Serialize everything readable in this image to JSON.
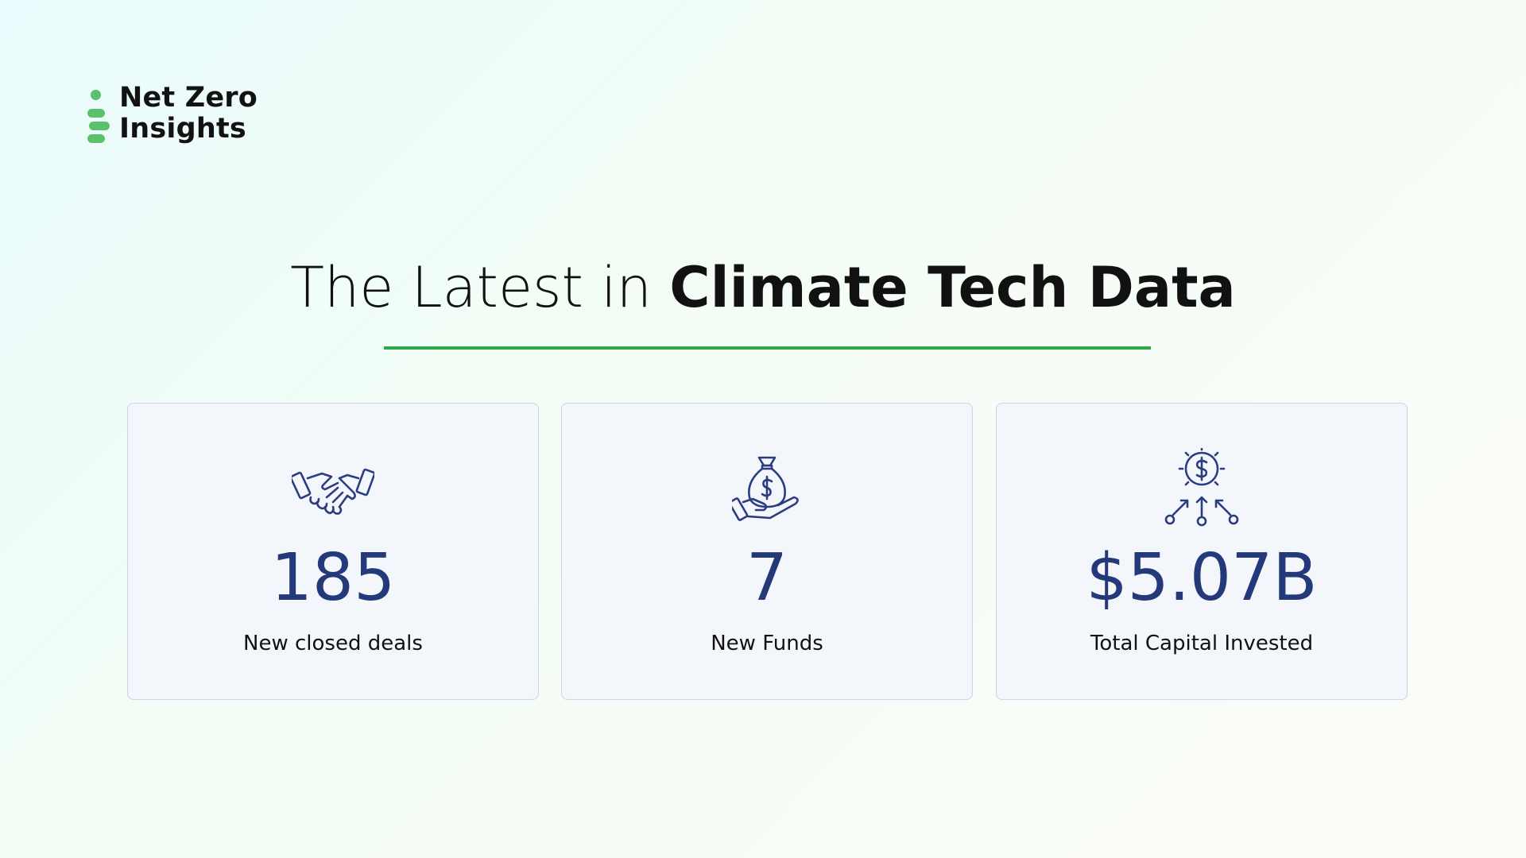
{
  "brand": {
    "name_line1": "Net Zero",
    "name_line2": "Insights",
    "color": "#5cc16b"
  },
  "headline": {
    "light": "The Latest in ",
    "bold": "Climate Tech Data",
    "rule_color": "#2ea84a"
  },
  "stats": [
    {
      "icon": "handshake-icon",
      "value": "185",
      "label": "New closed deals"
    },
    {
      "icon": "money-bag-hand-icon",
      "value": "7",
      "label": "New Funds"
    },
    {
      "icon": "dollar-distribution-icon",
      "value": "$5.07B",
      "label": "Total Capital Invested"
    }
  ],
  "colors": {
    "value_text": "#24397a",
    "icon_stroke": "#2b3d7e",
    "card_border": "#cbd3ec",
    "card_bg": "#f3f6fb"
  }
}
